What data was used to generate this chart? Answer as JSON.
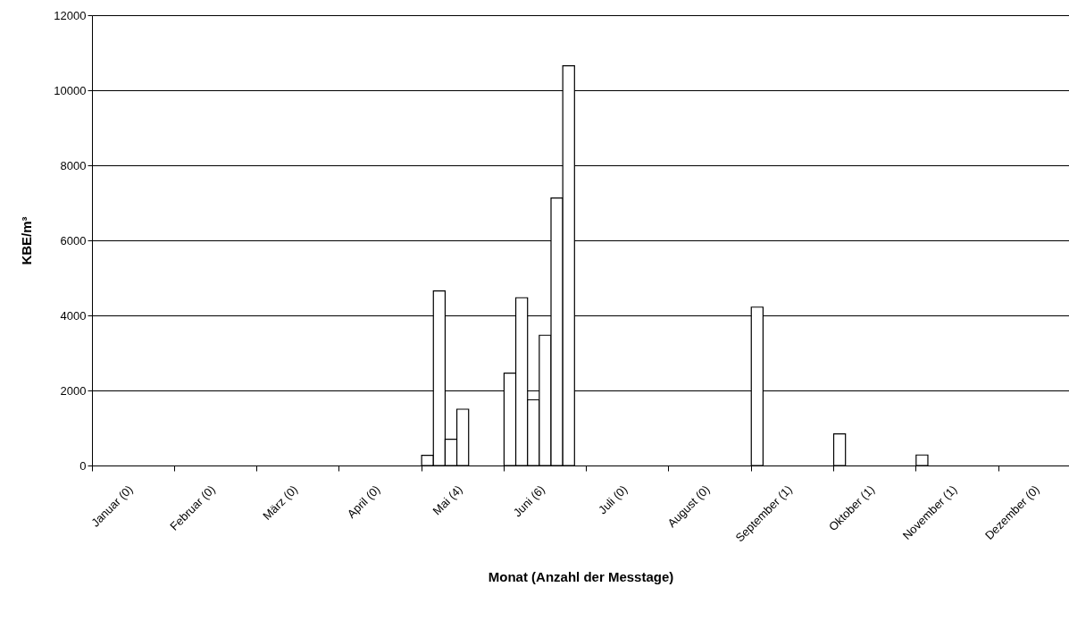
{
  "chart_data": {
    "type": "bar",
    "xlabel": "Monat (Anzahl der Messtage)",
    "ylabel": "KBE/m³",
    "categories": [
      "Januar (0)",
      "Februar (0)",
      "März (0)",
      "April (0)",
      "Mai (4)",
      "Juni (6)",
      "Juli (0)",
      "August  (0)",
      "September (1)",
      "Oktober (1)",
      "November (1)",
      "Dezember (0)"
    ],
    "series": [
      {
        "color": "#ffffff",
        "values": [
          null,
          null,
          null,
          null,
          270,
          2460,
          null,
          null,
          4220,
          840,
          280,
          null
        ]
      },
      {
        "color": "#ffffff",
        "values": [
          null,
          null,
          null,
          null,
          4650,
          4470,
          null,
          null,
          null,
          null,
          null,
          null
        ]
      },
      {
        "color": "#ffffff",
        "values": [
          null,
          null,
          null,
          null,
          700,
          1750,
          null,
          null,
          null,
          null,
          null,
          null
        ]
      },
      {
        "color": "#ffffff",
        "values": [
          null,
          null,
          null,
          null,
          1500,
          3470,
          null,
          null,
          null,
          null,
          null,
          null
        ]
      },
      {
        "color": "#ffffff",
        "values": [
          null,
          null,
          null,
          null,
          null,
          7130,
          null,
          null,
          null,
          null,
          null,
          null
        ]
      },
      {
        "color": "#ffffff",
        "values": [
          null,
          null,
          null,
          null,
          null,
          10650,
          null,
          null,
          null,
          null,
          null,
          null
        ]
      }
    ],
    "ylim": [
      0,
      12000
    ],
    "yticks": [
      0,
      2000,
      4000,
      6000,
      8000,
      10000,
      12000
    ],
    "grid": "y"
  }
}
